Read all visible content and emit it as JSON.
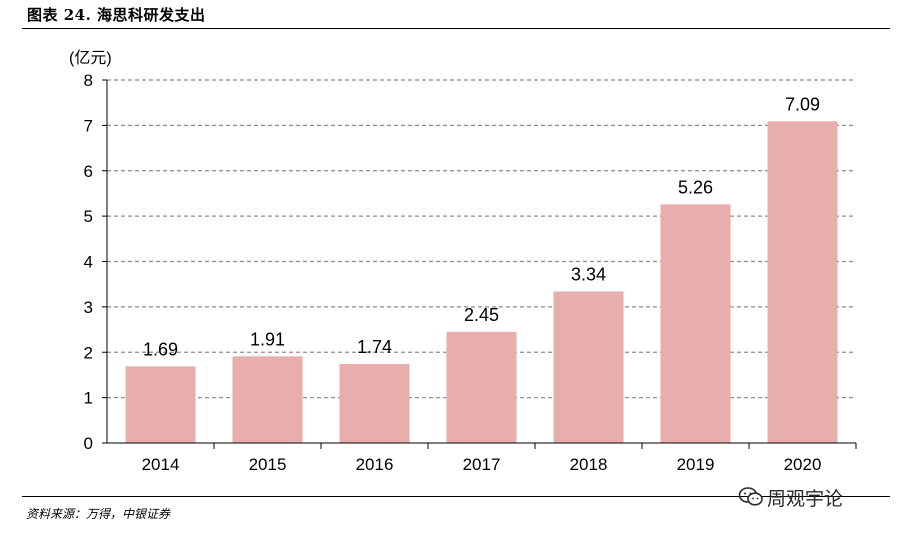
{
  "figure": {
    "title": "图表 24. 海思科研发支出",
    "source": "资料来源：万得，中银证券",
    "watermark": "周观宇论"
  },
  "chart_data": {
    "type": "bar",
    "title": "",
    "xlabel": "",
    "ylabel": "(亿元)",
    "categories": [
      "2014",
      "2015",
      "2016",
      "2017",
      "2018",
      "2019",
      "2020"
    ],
    "values": [
      1.69,
      1.91,
      1.74,
      2.45,
      3.34,
      5.26,
      7.09
    ],
    "data_labels": [
      "1.69",
      "1.91",
      "1.74",
      "2.45",
      "3.34",
      "5.26",
      "7.09"
    ],
    "yticks": [
      "0",
      "1",
      "2",
      "3",
      "4",
      "5",
      "6",
      "7",
      "8"
    ],
    "ylim": [
      0,
      8
    ],
    "grid": "horizontal dashed",
    "legend": "none",
    "colors": {
      "bar": "#e8aeab",
      "grid": "#8c8c8c",
      "axis": "#000000"
    }
  }
}
